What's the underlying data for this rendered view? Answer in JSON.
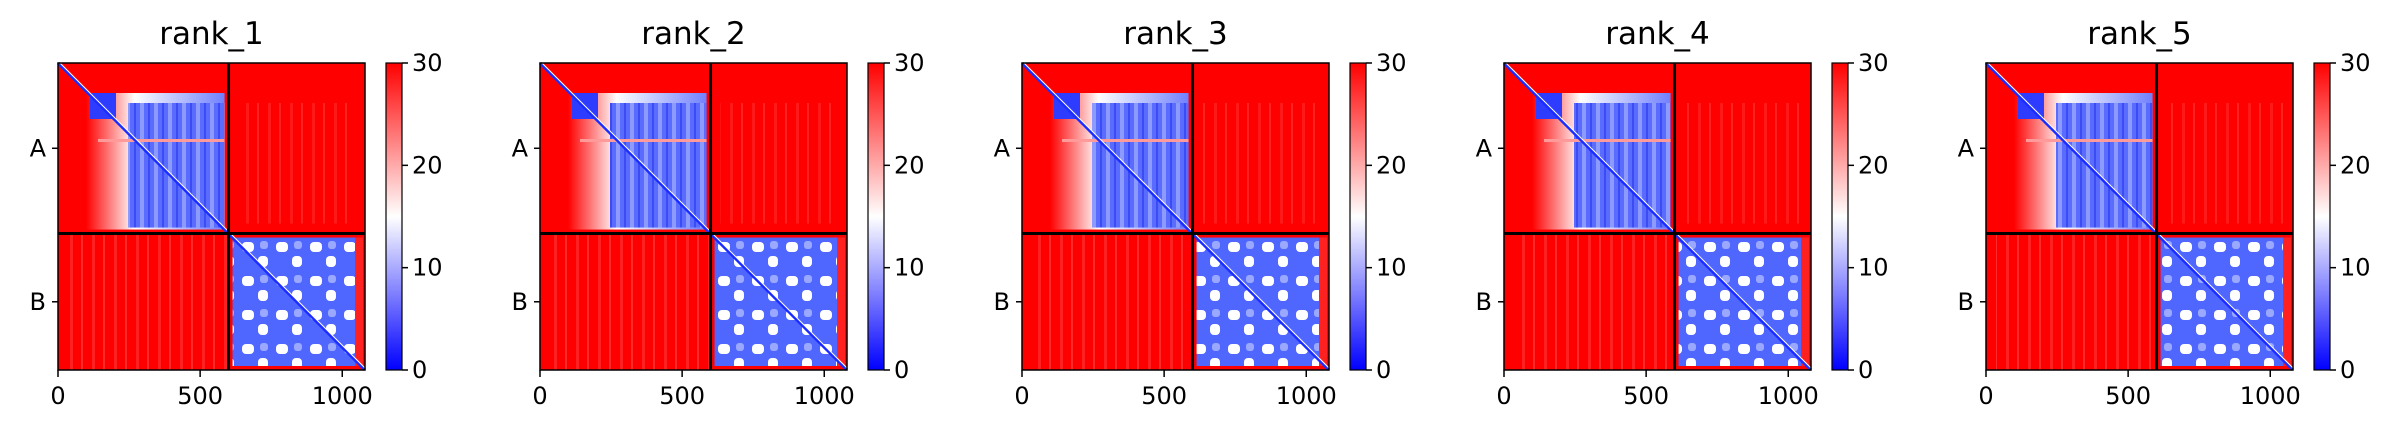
{
  "chart_data": [
    {
      "type": "heatmap",
      "title": "rank_1",
      "chains": [
        "A",
        "B"
      ],
      "boundary": 600,
      "total_length": 1080,
      "xticks": [
        0,
        500,
        1000
      ],
      "xlim": [
        0,
        1080
      ],
      "colorbar": {
        "ticks": [
          0,
          10,
          20,
          30
        ],
        "range": [
          0,
          30
        ],
        "colors": [
          "#0000ff",
          "#ffffff",
          "#ff0000"
        ]
      },
      "x_tick_labels": [
        "0",
        "500",
        "1000"
      ],
      "colorbar_tick_labels": [
        "0",
        "10",
        "20",
        "30"
      ]
    },
    {
      "type": "heatmap",
      "title": "rank_2",
      "chains": [
        "A",
        "B"
      ],
      "boundary": 600,
      "total_length": 1080,
      "xticks": [
        0,
        500,
        1000
      ],
      "xlim": [
        0,
        1080
      ],
      "colorbar": {
        "ticks": [
          0,
          10,
          20,
          30
        ],
        "range": [
          0,
          30
        ],
        "colors": [
          "#0000ff",
          "#ffffff",
          "#ff0000"
        ]
      },
      "x_tick_labels": [
        "0",
        "500",
        "1000"
      ],
      "colorbar_tick_labels": [
        "0",
        "10",
        "20",
        "30"
      ]
    },
    {
      "type": "heatmap",
      "title": "rank_3",
      "chains": [
        "A",
        "B"
      ],
      "boundary": 600,
      "total_length": 1080,
      "xticks": [
        0,
        500,
        1000
      ],
      "xlim": [
        0,
        1080
      ],
      "colorbar": {
        "ticks": [
          0,
          10,
          20,
          30
        ],
        "range": [
          0,
          30
        ],
        "colors": [
          "#0000ff",
          "#ffffff",
          "#ff0000"
        ]
      },
      "x_tick_labels": [
        "0",
        "500",
        "1000"
      ],
      "colorbar_tick_labels": [
        "0",
        "10",
        "20",
        "30"
      ]
    },
    {
      "type": "heatmap",
      "title": "rank_4",
      "chains": [
        "A",
        "B"
      ],
      "boundary": 600,
      "total_length": 1080,
      "xticks": [
        0,
        500,
        1000
      ],
      "xlim": [
        0,
        1080
      ],
      "colorbar": {
        "ticks": [
          0,
          10,
          20,
          30
        ],
        "range": [
          0,
          30
        ],
        "colors": [
          "#0000ff",
          "#ffffff",
          "#ff0000"
        ]
      },
      "x_tick_labels": [
        "0",
        "500",
        "1000"
      ],
      "colorbar_tick_labels": [
        "0",
        "10",
        "20",
        "30"
      ]
    },
    {
      "type": "heatmap",
      "title": "rank_5",
      "chains": [
        "A",
        "B"
      ],
      "boundary": 600,
      "total_length": 1080,
      "xticks": [
        0,
        500,
        1000
      ],
      "xlim": [
        0,
        1080
      ],
      "colorbar": {
        "ticks": [
          0,
          10,
          20,
          30
        ],
        "range": [
          0,
          30
        ],
        "colors": [
          "#0000ff",
          "#ffffff",
          "#ff0000"
        ]
      },
      "x_tick_labels": [
        "0",
        "500",
        "1000"
      ],
      "colorbar_tick_labels": [
        "0",
        "10",
        "20",
        "30"
      ]
    }
  ]
}
